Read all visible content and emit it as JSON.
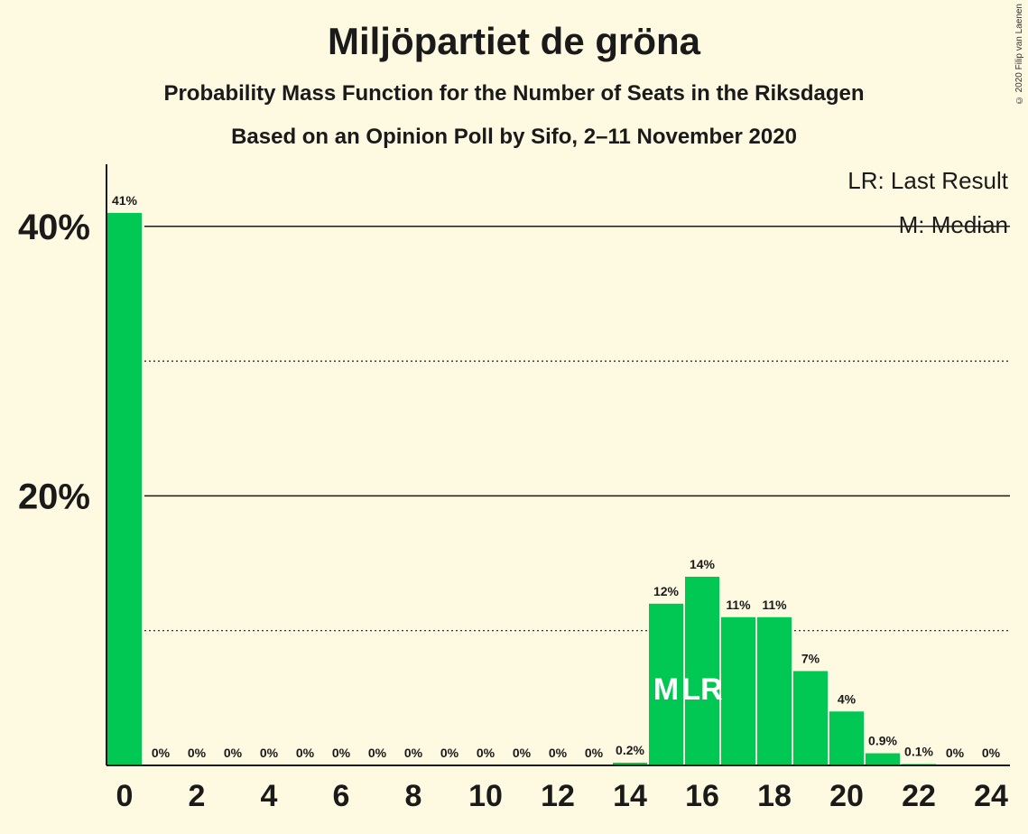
{
  "title": "Miljöpartiet de gröna",
  "subtitle_1": "Probability Mass Function for the Number of Seats in the Riksdagen",
  "subtitle_2": "Based on an Opinion Poll by Sifo, 2–11 November 2020",
  "copyright": "© 2020 Filip van Laenen",
  "legend": {
    "last_result": "LR: Last Result",
    "median": "M: Median"
  },
  "colors": {
    "background": "#fef9e1",
    "bar": "#00c853",
    "axis": "#1a1a1a"
  },
  "chart_data": {
    "type": "bar",
    "x": [
      0,
      1,
      2,
      3,
      4,
      5,
      6,
      7,
      8,
      9,
      10,
      11,
      12,
      13,
      14,
      15,
      16,
      17,
      18,
      19,
      20,
      21,
      22,
      23,
      24
    ],
    "values": [
      41,
      0,
      0,
      0,
      0,
      0,
      0,
      0,
      0,
      0,
      0,
      0,
      0,
      0,
      0.2,
      12,
      14,
      11,
      11,
      7,
      4,
      0.9,
      0.1,
      0,
      0
    ],
    "value_labels": [
      "41%",
      "0%",
      "0%",
      "0%",
      "0%",
      "0%",
      "0%",
      "0%",
      "0%",
      "0%",
      "0%",
      "0%",
      "0%",
      "0%",
      "0.2%",
      "12%",
      "14%",
      "11%",
      "11%",
      "7%",
      "4%",
      "0.9%",
      "0.1%",
      "0%",
      "0%"
    ],
    "x_tick_labels": [
      "0",
      "2",
      "4",
      "6",
      "8",
      "10",
      "12",
      "14",
      "16",
      "18",
      "20",
      "22",
      "24"
    ],
    "x_ticks": [
      0,
      2,
      4,
      6,
      8,
      10,
      12,
      14,
      16,
      18,
      20,
      22,
      24
    ],
    "y_tick_labels": [
      "20%",
      "40%"
    ],
    "y_ticks": [
      20,
      40
    ],
    "ylim": [
      0,
      45
    ],
    "gridlines_solid": [
      20,
      40
    ],
    "gridlines_dotted": [
      10,
      30
    ],
    "markers": [
      {
        "x": 15,
        "label": "M"
      },
      {
        "x": 16,
        "label": "LR"
      }
    ],
    "legend_position": "top-right"
  }
}
